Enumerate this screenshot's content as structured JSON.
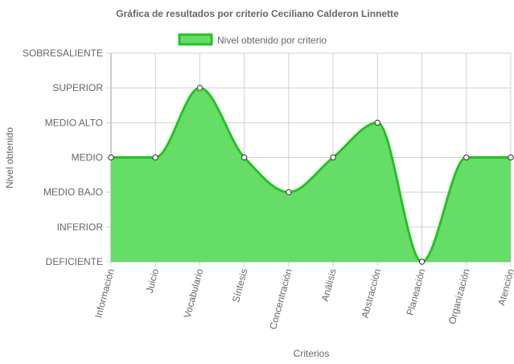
{
  "chart_data": {
    "type": "area",
    "title": "Gráfica de resultados por criterio Ceciliano Calderon Linnette",
    "xlabel": "Criterios",
    "ylabel": "Nivel obtenido",
    "levels": [
      "DEFICIENTE",
      "INFERIOR",
      "MEDIO BAJO",
      "MEDIO",
      "MEDIO ALTO",
      "SUPERIOR",
      "SOBRESALIENTE"
    ],
    "categories": [
      "Información",
      "Juicio",
      "Vocabulario",
      "Síntesis",
      "Concentración",
      "Análisis",
      "Abstracción",
      "Planeación",
      "Organización",
      "Atención"
    ],
    "series": [
      {
        "name": "Nivel obtenido por criterio",
        "values": [
          "MEDIO",
          "MEDIO",
          "SUPERIOR",
          "MEDIO",
          "MEDIO BAJO",
          "MEDIO",
          "MEDIO ALTO",
          "DEFICIENTE",
          "MEDIO",
          "MEDIO"
        ],
        "fill_color": "#66dd66",
        "line_color": "#22c322"
      }
    ],
    "grid": true,
    "legend_position": "top"
  }
}
